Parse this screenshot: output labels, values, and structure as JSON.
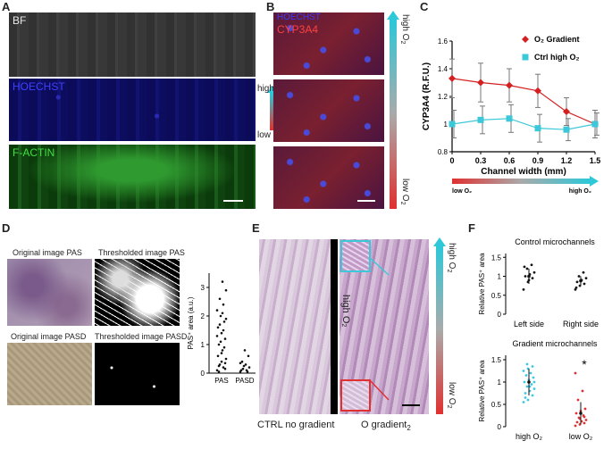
{
  "panels": {
    "A": {
      "letter": "A",
      "labels": [
        "BF",
        "HOECHST",
        "F-ACTIN"
      ],
      "gradient_high": "high O",
      "gradient_low": "low O",
      "sub": "2"
    },
    "B": {
      "letter": "B",
      "stain": "CYP3A4",
      "nuclear": "HOECHST",
      "bar_high": "high O",
      "bar_low": "low O",
      "sub": "2"
    },
    "C": {
      "letter": "C"
    },
    "D": {
      "letter": "D",
      "titles": [
        "Original image PAS",
        "Thresholded image PAS",
        "Original image PASD",
        "Thresholded image PASD"
      ]
    },
    "E": {
      "letter": "E",
      "left_caption": "CTRL no gradient",
      "right_caption": "O gradient",
      "right_caption_sub": "2",
      "mid_label": "high O",
      "mid_label_sub": "2",
      "bar_high": "high O",
      "bar_low": "low O",
      "sub": "2"
    },
    "F": {
      "letter": "F"
    }
  },
  "chart_data": [
    {
      "id": "C",
      "type": "scatter",
      "xlabel": "Channel width (mm)",
      "ylabel": "CYP3A4 (R.F.U.)",
      "xlim": [
        0,
        1.5
      ],
      "ylim": [
        0.8,
        1.6
      ],
      "xticks": [
        "0",
        "0.3",
        "0.6",
        "0.9",
        "1.2",
        "1.5"
      ],
      "yticks": [
        "0.8",
        "1",
        "1.2",
        "1.4",
        "1.6"
      ],
      "x": [
        0,
        0.3,
        0.6,
        0.9,
        1.2,
        1.5
      ],
      "series": [
        {
          "name": "O₂ Gradient",
          "color": "#d42020",
          "marker": "diamond",
          "values": [
            1.33,
            1.3,
            1.28,
            1.24,
            1.09,
            1.0
          ],
          "err": [
            0.14,
            0.14,
            0.12,
            0.12,
            0.1,
            0.1
          ]
        },
        {
          "name": "Ctrl high O₂",
          "color": "#3cc8d8",
          "marker": "square",
          "values": [
            1.0,
            1.03,
            1.04,
            0.97,
            0.96,
            1.0
          ],
          "err": [
            0.1,
            0.1,
            0.1,
            0.1,
            0.08,
            0.08
          ]
        }
      ],
      "axis_low": "low O₂",
      "axis_high": "high O₂",
      "legend": "top-right"
    },
    {
      "id": "D",
      "type": "scatter",
      "ylabel": "PAS⁺ area (a.u.)",
      "categories": [
        "PAS",
        "PASD"
      ],
      "yticks": [
        "0",
        "1",
        "2",
        "3"
      ],
      "ylim": [
        0,
        3.5
      ],
      "series": [
        {
          "name": "PAS",
          "values": [
            0.1,
            0.2,
            0.3,
            0.5,
            0.8,
            1.0,
            1.2,
            1.4,
            1.6,
            1.8,
            2.0,
            2.2,
            2.4,
            2.6,
            2.9,
            3.2,
            0.05,
            0.15,
            0.4,
            0.6,
            0.9,
            1.1,
            1.3,
            1.5,
            1.7,
            1.9,
            2.1,
            0.25,
            0.35,
            0.7
          ]
        },
        {
          "name": "PASD",
          "values": [
            0.05,
            0.1,
            0.15,
            0.2,
            0.3,
            0.4,
            0.6,
            0.8,
            0.1,
            0.05,
            0.25,
            0.35
          ]
        }
      ]
    },
    {
      "id": "F-top",
      "type": "scatter",
      "title": "Control microchannels",
      "ylabel": "Relative PAS⁺ area",
      "categories": [
        "Left side",
        "Right side"
      ],
      "yticks": [
        "0",
        "0.5",
        "1",
        "1.5"
      ],
      "ylim": [
        0,
        1.6
      ],
      "series": [
        {
          "name": "Left side",
          "mean": 1.0,
          "sd": 0.2,
          "values": [
            0.65,
            0.85,
            0.95,
            1.0,
            1.05,
            1.1,
            1.2,
            1.3,
            1.25,
            0.9
          ]
        },
        {
          "name": "Right side",
          "mean": 0.88,
          "sd": 0.12,
          "values": [
            0.65,
            0.75,
            0.8,
            0.85,
            0.9,
            0.95,
            1.0,
            1.1,
            0.7
          ]
        }
      ]
    },
    {
      "id": "F-bottom",
      "type": "scatter",
      "title": "Gradient microchannels",
      "ylabel": "Relative PAS⁺ area",
      "categories": [
        "high O₂",
        "low O₂"
      ],
      "yticks": [
        "0",
        "0.5",
        "1",
        "1.5"
      ],
      "ylim": [
        0,
        1.6
      ],
      "annotation": "*",
      "series": [
        {
          "name": "high O₂",
          "color": "#3cc8e0",
          "mean": 1.0,
          "sd": 0.3,
          "values": [
            0.55,
            0.6,
            0.7,
            0.75,
            0.8,
            0.85,
            0.9,
            0.95,
            1.0,
            1.05,
            1.1,
            1.15,
            1.2,
            1.25,
            1.3,
            1.35,
            0.65,
            0.9,
            1.0,
            1.4
          ]
        },
        {
          "name": "low O₂",
          "color": "#e03030",
          "mean": 0.3,
          "sd": 0.25,
          "values": [
            0.02,
            0.05,
            0.08,
            0.1,
            0.12,
            0.15,
            0.2,
            0.25,
            0.3,
            0.35,
            0.4,
            0.6,
            0.8,
            1.2,
            0.18,
            0.22
          ]
        }
      ]
    }
  ]
}
